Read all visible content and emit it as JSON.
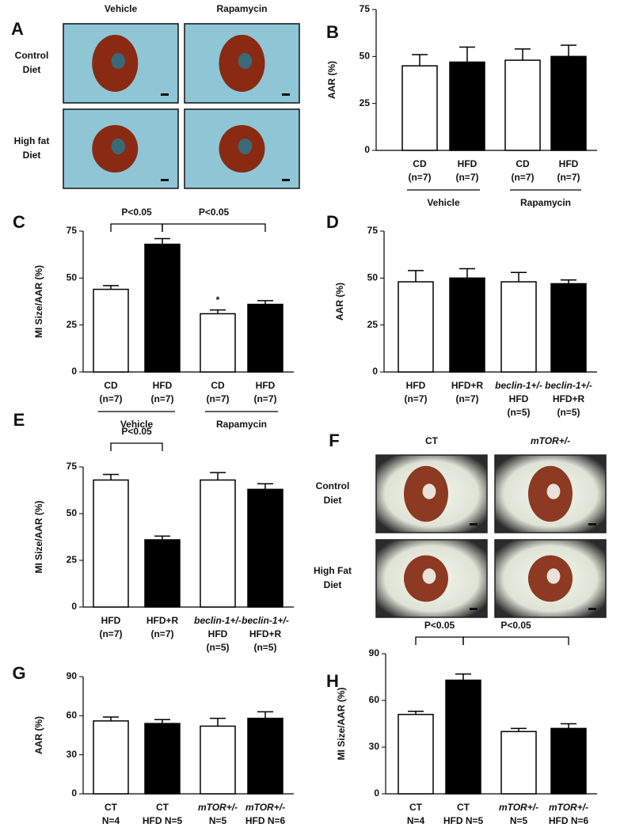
{
  "image_panels": [
    {
      "panel": "A",
      "columns": [
        "Vehicle",
        "Rapamycin"
      ],
      "rows": [
        [
          "Control",
          "Diet"
        ],
        [
          "High fat",
          "Diet"
        ]
      ]
    },
    {
      "panel": "F",
      "columns": [
        "CT",
        "mTOR+/-"
      ],
      "rows": [
        [
          "Control",
          "Diet"
        ],
        [
          "High Fat",
          "Diet"
        ]
      ]
    }
  ],
  "chart_data": [
    {
      "panel": "B",
      "type": "bar",
      "ylabel": "AAR (%)",
      "categories": [
        [
          "CD",
          "(n=7)"
        ],
        [
          "HFD",
          "(n=7)"
        ],
        [
          "CD",
          "(n=7)"
        ],
        [
          "HFD",
          "(n=7)"
        ]
      ],
      "values": [
        45,
        47,
        48,
        50
      ],
      "errors": [
        6,
        8,
        6,
        6
      ],
      "colors": [
        "#ffffff",
        "#000000",
        "#ffffff",
        "#000000"
      ],
      "ylim": [
        0,
        75
      ],
      "yticks": [
        0,
        25,
        50,
        75
      ],
      "groups": [
        {
          "label": "Vehicle",
          "from": 0,
          "to": 1
        },
        {
          "label": "Rapamycin",
          "from": 2,
          "to": 3
        }
      ]
    },
    {
      "panel": "C",
      "type": "bar",
      "ylabel": "MI Size/AAR (%)",
      "categories": [
        [
          "CD",
          "(n=7)"
        ],
        [
          "HFD",
          "(n=7)"
        ],
        [
          "CD",
          "(n=7)"
        ],
        [
          "HFD",
          "(n=7)"
        ]
      ],
      "values": [
        44,
        68,
        31,
        36
      ],
      "errors": [
        2,
        3,
        2,
        2
      ],
      "colors": [
        "#ffffff",
        "#000000",
        "#ffffff",
        "#000000"
      ],
      "ylim": [
        0,
        75
      ],
      "yticks": [
        0,
        25,
        50,
        75
      ],
      "groups": [
        {
          "label": "Vehicle",
          "from": 0,
          "to": 1
        },
        {
          "label": "Rapamycin",
          "from": 2,
          "to": 3
        }
      ],
      "annotations": [
        {
          "text": "P<0.05",
          "from": 0,
          "to": 1
        },
        {
          "text": "P<0.05",
          "from": 1,
          "to": 3
        }
      ],
      "markers": [
        {
          "text": "*",
          "at": 2
        }
      ]
    },
    {
      "panel": "D",
      "type": "bar",
      "ylabel": "AAR (%)",
      "categories": [
        [
          "HFD",
          "(n=7)"
        ],
        [
          "HFD+R",
          "(n=7)"
        ],
        [
          "beclin-1+/-",
          "HFD",
          "(n=5)"
        ],
        [
          "beclin-1+/-",
          "HFD+R",
          "(n=5)"
        ]
      ],
      "italic": [
        false,
        false,
        true,
        true
      ],
      "values": [
        48,
        50,
        48,
        47
      ],
      "errors": [
        6,
        5,
        5,
        2
      ],
      "colors": [
        "#ffffff",
        "#000000",
        "#ffffff",
        "#000000"
      ],
      "ylim": [
        0,
        75
      ],
      "yticks": [
        0,
        25,
        50,
        75
      ]
    },
    {
      "panel": "E",
      "type": "bar",
      "ylabel": "MI Size/AAR (%)",
      "categories": [
        [
          "HFD",
          "(n=7)"
        ],
        [
          "HFD+R",
          "(n=7)"
        ],
        [
          "beclin-1+/-",
          "HFD",
          "(n=5)"
        ],
        [
          "beclin-1+/-",
          "HFD+R",
          "(n=5)"
        ]
      ],
      "italic": [
        false,
        false,
        true,
        true
      ],
      "values": [
        68,
        36,
        68,
        63
      ],
      "errors": [
        3,
        2,
        4,
        3
      ],
      "colors": [
        "#ffffff",
        "#000000",
        "#ffffff",
        "#000000"
      ],
      "ylim": [
        0,
        75
      ],
      "yticks": [
        0,
        25,
        50,
        75
      ],
      "annotations": [
        {
          "text": "P<0.05",
          "from": 0,
          "to": 1
        }
      ]
    },
    {
      "panel": "G",
      "type": "bar",
      "ylabel": "AAR (%)",
      "categories": [
        [
          "CT",
          "N=4"
        ],
        [
          "CT",
          "HFD N=5"
        ],
        [
          "mTOR+/-",
          "N=5"
        ],
        [
          "mTOR+/-",
          "HFD N=6"
        ]
      ],
      "italic": [
        false,
        false,
        true,
        true
      ],
      "values": [
        56,
        54,
        52,
        58
      ],
      "errors": [
        3,
        3,
        6,
        5
      ],
      "colors": [
        "#ffffff",
        "#000000",
        "#ffffff",
        "#000000"
      ],
      "ylim": [
        0,
        90
      ],
      "yticks": [
        0,
        30,
        60,
        90
      ]
    },
    {
      "panel": "H",
      "type": "bar",
      "ylabel": "MI Size/AAR (%)",
      "categories": [
        [
          "CT",
          "N=4"
        ],
        [
          "CT",
          "HFD N=5"
        ],
        [
          "mTOR+/-",
          "N=5"
        ],
        [
          "mTOR+/-",
          "HFD N=6"
        ]
      ],
      "italic": [
        false,
        false,
        true,
        true
      ],
      "values": [
        51,
        73,
        40,
        42
      ],
      "errors": [
        2,
        4,
        2,
        3
      ],
      "colors": [
        "#ffffff",
        "#000000",
        "#ffffff",
        "#000000"
      ],
      "ylim": [
        0,
        90
      ],
      "yticks": [
        0,
        30,
        60,
        90
      ],
      "annotations": [
        {
          "text": "P<0.05",
          "from": 0,
          "to": 1
        },
        {
          "text": "P<0.05",
          "from": 1,
          "to": 3
        }
      ]
    }
  ]
}
